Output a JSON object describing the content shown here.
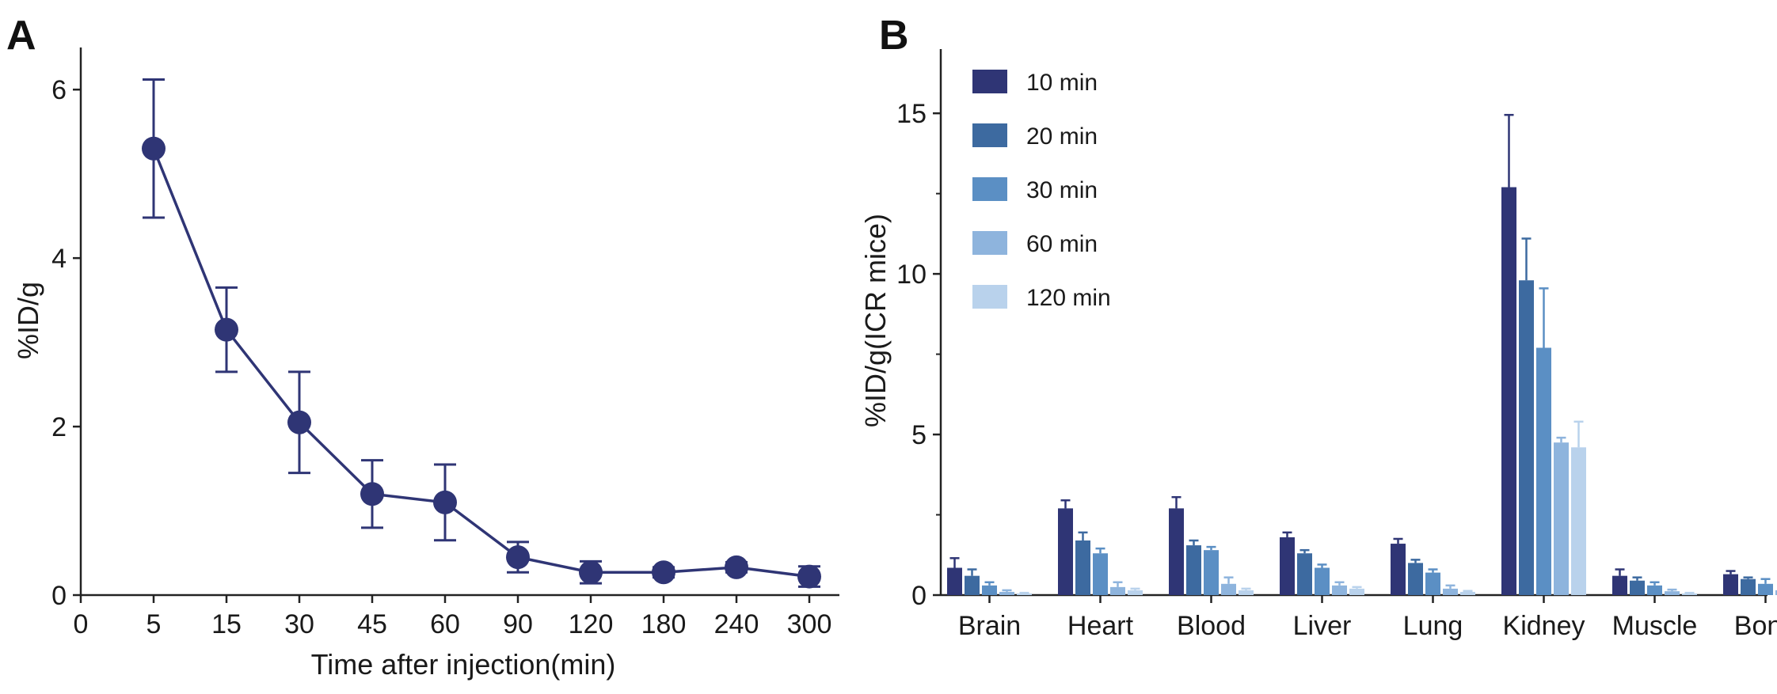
{
  "colors": {
    "panel_a_series": "#2f3575",
    "axis": "#222222",
    "bars": [
      "#2f3575",
      "#3d6aa0",
      "#5b8fc4",
      "#8eb4dd",
      "#b9d2ec"
    ]
  },
  "chart_data": [
    {
      "panel": "A",
      "type": "line",
      "ylabel": "%ID/g",
      "xlabel": "Time after injection(min)",
      "xtick_labels": [
        "0",
        "5",
        "15",
        "30",
        "45",
        "60",
        "90",
        "120",
        "180",
        "240",
        "300"
      ],
      "ytick_labels": [
        "0",
        "2",
        "4",
        "6"
      ],
      "ylim": [
        0,
        6.5
      ],
      "series": [
        {
          "x": [
            "5",
            "15",
            "30",
            "45",
            "60",
            "90",
            "120",
            "180",
            "240",
            "300"
          ],
          "values": [
            5.3,
            3.15,
            2.05,
            1.2,
            1.1,
            0.45,
            0.27,
            0.27,
            0.33,
            0.22
          ],
          "errors": [
            0.82,
            0.5,
            0.6,
            0.4,
            0.45,
            0.18,
            0.13,
            0.06,
            0.06,
            0.12
          ]
        }
      ]
    },
    {
      "panel": "B",
      "type": "bar",
      "ylabel": "%ID/g(ICR mice)",
      "categories": [
        "Brain",
        "Heart",
        "Blood",
        "Liver",
        "Lung",
        "Kidney",
        "Muscle",
        "Bone"
      ],
      "ytick_labels": [
        "0",
        "5",
        "10",
        "15"
      ],
      "ylim": [
        0,
        17
      ],
      "legend_position": "top-left",
      "series": [
        {
          "name": "10 min",
          "values": [
            0.85,
            2.7,
            2.7,
            1.8,
            1.6,
            12.7,
            0.6,
            0.65
          ],
          "errors": [
            0.3,
            0.25,
            0.35,
            0.15,
            0.15,
            2.25,
            0.2,
            0.1
          ]
        },
        {
          "name": "20 min",
          "values": [
            0.6,
            1.7,
            1.55,
            1.3,
            1.0,
            9.8,
            0.45,
            0.5
          ],
          "errors": [
            0.2,
            0.25,
            0.15,
            0.1,
            0.1,
            1.3,
            0.1,
            0.05
          ]
        },
        {
          "name": "30 min",
          "values": [
            0.3,
            1.3,
            1.4,
            0.85,
            0.7,
            7.7,
            0.3,
            0.35
          ],
          "errors": [
            0.1,
            0.15,
            0.1,
            0.1,
            0.1,
            1.85,
            0.1,
            0.15
          ]
        },
        {
          "name": "60 min",
          "values": [
            0.1,
            0.25,
            0.35,
            0.3,
            0.2,
            4.75,
            0.12,
            0.15
          ],
          "errors": [
            0.05,
            0.15,
            0.2,
            0.1,
            0.1,
            0.15,
            0.05,
            0.1
          ]
        },
        {
          "name": "120 min",
          "values": [
            0.05,
            0.15,
            0.15,
            0.2,
            0.1,
            4.6,
            0.05,
            0.1
          ],
          "errors": [
            0.02,
            0.05,
            0.05,
            0.05,
            0.03,
            0.8,
            0.02,
            0.05
          ]
        }
      ]
    }
  ]
}
